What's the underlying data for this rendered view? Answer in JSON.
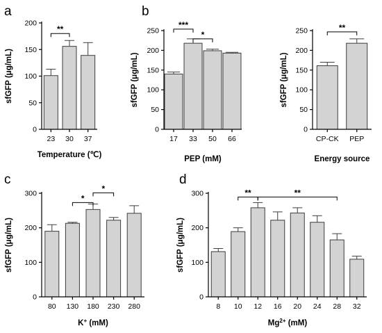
{
  "chart_data": [
    {
      "type": "bar",
      "panel": "a",
      "categories": [
        "23",
        "30",
        "37"
      ],
      "values": [
        101,
        156,
        139
      ],
      "errors": [
        12,
        11,
        24
      ],
      "ylim": [
        0,
        200
      ],
      "yticks": [
        0,
        50,
        100,
        150,
        200
      ],
      "xlabel": "Temperature (℃)",
      "ylabel": "sfGFP (μg/mL)",
      "significance": [
        {
          "from": 0,
          "to": 1,
          "label": "**"
        }
      ]
    },
    {
      "type": "bar",
      "panel": "b",
      "categories": [
        "17",
        "33",
        "50",
        "66"
      ],
      "values": [
        140,
        218,
        199,
        193
      ],
      "errors": [
        5,
        11,
        4,
        2
      ],
      "ylim": [
        0,
        250
      ],
      "yticks": [
        0,
        50,
        100,
        150,
        200,
        250
      ],
      "xlabel": "PEP (mM)",
      "ylabel": "sfGFP (μg/mL)",
      "significance": [
        {
          "from": 0,
          "to": 1,
          "label": "***"
        },
        {
          "from": 1,
          "to": 2,
          "label": "*"
        }
      ]
    },
    {
      "type": "bar",
      "panel": "",
      "categories": [
        "CP-CK",
        "PEP"
      ],
      "values": [
        161,
        218
      ],
      "errors": [
        9,
        11
      ],
      "ylim": [
        0,
        250
      ],
      "yticks": [
        0,
        50,
        100,
        150,
        200,
        250
      ],
      "xlabel": "Energy source",
      "ylabel": "sfGFP (μg/mL)",
      "significance": [
        {
          "from": 0,
          "to": 1,
          "label": "**"
        }
      ]
    },
    {
      "type": "bar",
      "panel": "c",
      "categories": [
        "80",
        "130",
        "180",
        "230",
        "280"
      ],
      "values": [
        190,
        213,
        253,
        222,
        242
      ],
      "errors": [
        19,
        3,
        16,
        8,
        22
      ],
      "ylim": [
        0,
        300
      ],
      "yticks": [
        0,
        100,
        200,
        300
      ],
      "xlabel_main": "K",
      "xlabel_sup": "+",
      "xlabel_tail": " (mM)",
      "ylabel": "sfGFP (μg/mL)",
      "significance": [
        {
          "from": 1,
          "to": 2,
          "label": "*"
        },
        {
          "from": 2,
          "to": 3,
          "label": "*"
        }
      ]
    },
    {
      "type": "bar",
      "panel": "d",
      "categories": [
        "8",
        "10",
        "12",
        "16",
        "20",
        "24",
        "28",
        "32"
      ],
      "values": [
        131,
        189,
        258,
        222,
        243,
        216,
        165,
        109
      ],
      "errors": [
        9,
        11,
        15,
        24,
        15,
        19,
        18,
        9
      ],
      "ylim": [
        0,
        300
      ],
      "yticks": [
        0,
        100,
        200,
        300
      ],
      "xlabel_main": "Mg",
      "xlabel_sup": "2+",
      "xlabel_tail": " (mM)",
      "ylabel": "sfGFP (μg/mL)",
      "significance": [
        {
          "from": 1,
          "to": 2,
          "label": "**"
        },
        {
          "from": 2,
          "to": 6,
          "label": "**"
        }
      ]
    }
  ]
}
